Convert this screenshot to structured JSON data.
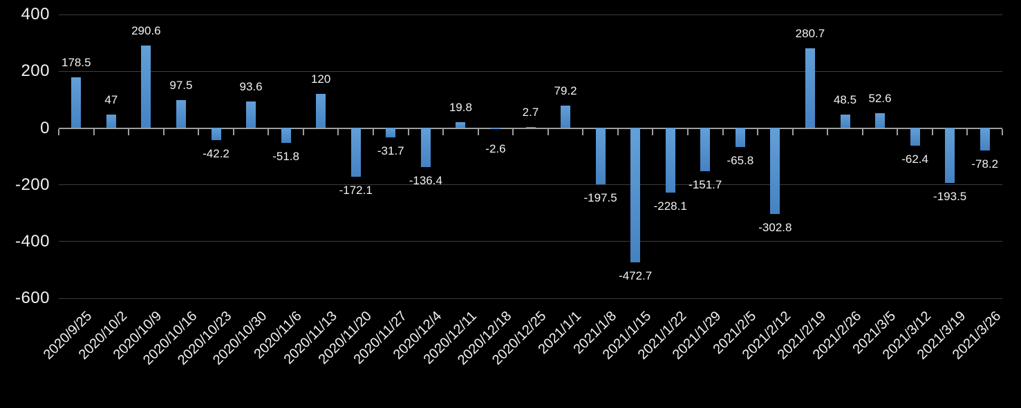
{
  "chart_data": {
    "type": "bar",
    "title": "",
    "xlabel": "",
    "ylabel": "",
    "categories": [
      "2020/9/25",
      "2020/10/2",
      "2020/10/9",
      "2020/10/16",
      "2020/10/23",
      "2020/10/30",
      "2020/11/6",
      "2020/11/13",
      "2020/11/20",
      "2020/11/27",
      "2020/12/4",
      "2020/12/11",
      "2020/12/18",
      "2020/12/25",
      "2021/1/1",
      "2021/1/8",
      "2021/1/15",
      "2021/1/22",
      "2021/1/29",
      "2021/2/5",
      "2021/2/12",
      "2021/2/19",
      "2021/2/26",
      "2021/3/5",
      "2021/3/12",
      "2021/3/19",
      "2021/3/26"
    ],
    "values": [
      178.5,
      47,
      290.6,
      97.5,
      -42.2,
      93.6,
      -51.8,
      120,
      -172.1,
      -31.7,
      -136.4,
      19.8,
      -2.6,
      2.7,
      79.2,
      -197.5,
      -472.7,
      -228.1,
      -151.7,
      -65.8,
      -302.8,
      280.7,
      48.5,
      52.6,
      -62.4,
      -193.5,
      -78.2
    ],
    "data_labels_visible": true,
    "y_ticks": [
      400,
      200,
      0,
      -200,
      -400,
      -600
    ],
    "y_tick_labels": [
      "400",
      "200",
      "0",
      "-200",
      "-400",
      "-600"
    ],
    "ylim": [
      -600,
      400
    ],
    "grid": true,
    "legend": "none",
    "x_label_rotation_deg": 45,
    "colors": {
      "background": "#000000",
      "bar_gradient_top": "#63a0d8",
      "bar_gradient_bottom": "#4482c3",
      "gridline": "#3d3d3d",
      "axis": "#9e9e9e",
      "label_text": "#f2f2f2"
    }
  }
}
